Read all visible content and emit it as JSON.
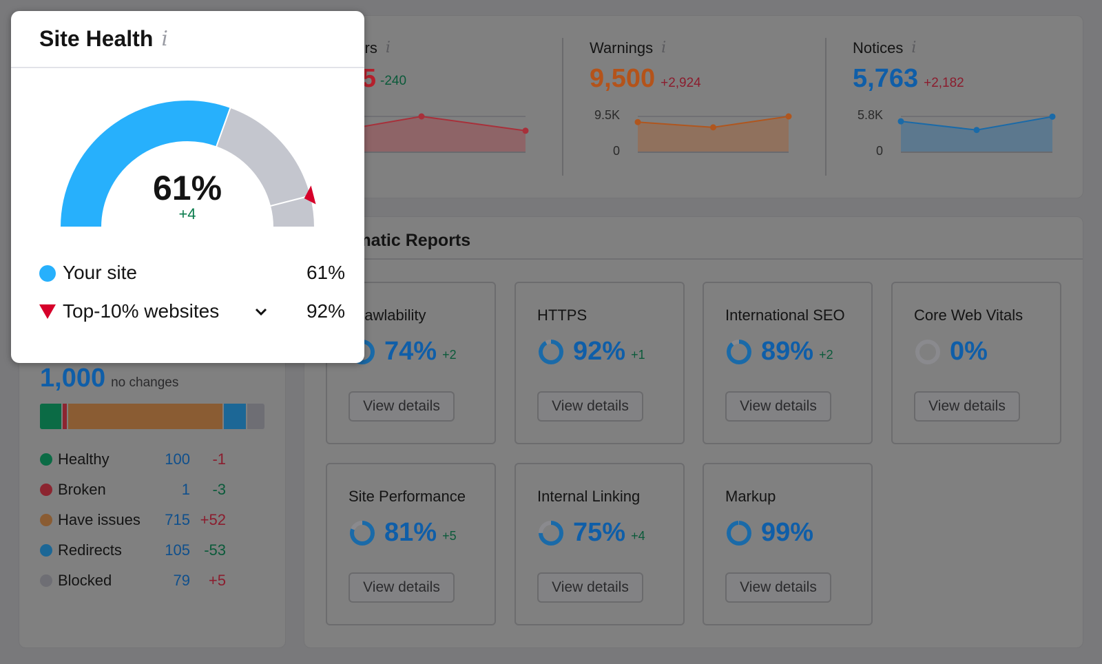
{
  "summary": {
    "errors": {
      "label": "Errors",
      "value_visible": "5",
      "delta": "-240",
      "points": [
        0.62,
        1.0,
        0.6
      ],
      "color": "#b5202c"
    },
    "warnings": {
      "label": "Warnings",
      "value": "9,500",
      "delta": "+2,924",
      "axis_max": "9.5K",
      "axis_min": "0",
      "points": [
        8000,
        6600,
        9500
      ],
      "ymax": 9500,
      "color": "#c05a1c"
    },
    "notices": {
      "label": "Notices",
      "value": "5,763",
      "delta": "+2,182",
      "axis_max": "5.8K",
      "axis_min": "0",
      "points": [
        5000,
        3600,
        5763
      ],
      "ymax": 5800,
      "color": "#1a74b8"
    }
  },
  "crawled": {
    "total": "1,000",
    "total_note": "no changes",
    "items": [
      {
        "label": "Healthy",
        "value": "100",
        "count": 100,
        "delta": "-1",
        "delta_color": "#8b1d2e",
        "color": "#0b6b45"
      },
      {
        "label": "Broken",
        "value": "1",
        "count": 1,
        "delta": "-3",
        "delta_color": "#0b5a3a",
        "color": "#8c2530"
      },
      {
        "label": "Have issues",
        "value": "715",
        "count": 715,
        "delta": "+52",
        "delta_color": "#8b1d2e",
        "color": "#8a5c33"
      },
      {
        "label": "Redirects",
        "value": "105",
        "count": 105,
        "delta": "-53",
        "delta_color": "#0b5a3a",
        "color": "#1c6796"
      },
      {
        "label": "Blocked",
        "value": "79",
        "count": 79,
        "delta": "+5",
        "delta_color": "#8b1d2e",
        "color": "#6e6e74"
      }
    ]
  },
  "reports": {
    "title": "Thematic Reports",
    "button_label": "View details",
    "items": [
      {
        "title": "Crawlability",
        "value": "74%",
        "pct": 74,
        "delta": "+2"
      },
      {
        "title": "HTTPS",
        "value": "92%",
        "pct": 92,
        "delta": "+1"
      },
      {
        "title": "International SEO",
        "value": "89%",
        "pct": 89,
        "delta": "+2"
      },
      {
        "title": "Core Web Vitals",
        "value": "0%",
        "pct": 0,
        "delta": ""
      },
      {
        "title": "Site Performance",
        "value": "81%",
        "pct": 81,
        "delta": "+5"
      },
      {
        "title": "Internal Linking",
        "value": "75%",
        "pct": 75,
        "delta": "+4"
      },
      {
        "title": "Markup",
        "value": "99%",
        "pct": 99,
        "delta": ""
      }
    ]
  },
  "site_health": {
    "title": "Site Health",
    "value": "61%",
    "pct": 61,
    "delta": "+4",
    "top10_pct": 92,
    "legend": [
      {
        "label": "Your site",
        "value": "61%"
      },
      {
        "label": "Top-10% websites",
        "value": "92%"
      }
    ],
    "colors": {
      "your_site": "#27b0fc",
      "track": "#c4c6ce",
      "top10": "#d6002a",
      "delta": "#077a4a"
    }
  }
}
